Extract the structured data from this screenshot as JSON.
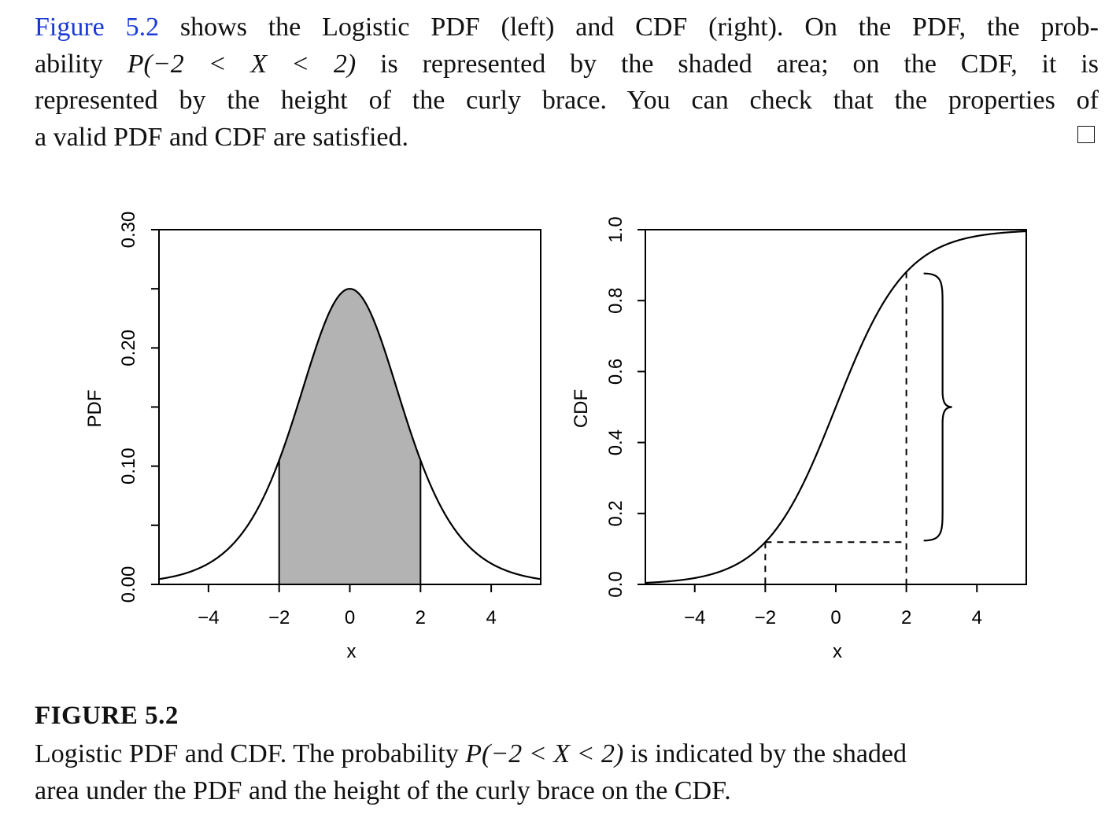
{
  "paragraph": {
    "ref": "Figure 5.2",
    "line1_rest": " shows the Logistic PDF (left) and CDF (right). On the PDF, the prob-",
    "line2_a": "ability ",
    "line2_math": "P(−2 < X < 2)",
    "line2_b": " is represented by the shaded area; on the CDF, it is",
    "line3": "represented by the height of the curly brace. You can check that the properties of",
    "line4": "a valid PDF and CDF are satisfied."
  },
  "caption": {
    "title": "FIGURE 5.2",
    "line1_a": "Logistic PDF and CDF. The probability ",
    "line1_math": "P(−2 < X < 2)",
    "line1_b": " is indicated by the shaded",
    "line2": "area under the PDF and the height of the curly brace on the CDF."
  },
  "chart_data": [
    {
      "type": "area",
      "ylabel": "PDF",
      "xlabel": "x",
      "xlim": [
        -5.4,
        5.4
      ],
      "ylim": [
        0,
        0.3
      ],
      "x_ticks": [
        "−4",
        "−2",
        "0",
        "2",
        "4"
      ],
      "x_tick_values": [
        -4,
        -2,
        0,
        2,
        4
      ],
      "y_ticks": [
        "0.00",
        "0.10",
        "0.20",
        "0.30"
      ],
      "y_tick_values": [
        0,
        0.1,
        0.2,
        0.3
      ],
      "y_minor_ticks": [
        0.05,
        0.15,
        0.25
      ],
      "curve": "logistic pdf e^-x/(1+e^-x)^2",
      "shaded_interval": [
        -2,
        2
      ],
      "peak": {
        "x": 0,
        "y": 0.25
      }
    },
    {
      "type": "line",
      "ylabel": "CDF",
      "xlabel": "x",
      "xlim": [
        -5.4,
        5.4
      ],
      "ylim": [
        0,
        1.0
      ],
      "x_ticks": [
        "−4",
        "−2",
        "0",
        "2",
        "4"
      ],
      "x_tick_values": [
        -4,
        -2,
        0,
        2,
        4
      ],
      "y_ticks": [
        "0.0",
        "0.2",
        "0.4",
        "0.6",
        "0.8",
        "1.0"
      ],
      "y_tick_values": [
        0,
        0.2,
        0.4,
        0.6,
        0.8,
        1.0
      ],
      "curve": "logistic cdf 1/(1+e^-x)",
      "dashed_markers": [
        {
          "x": -2,
          "y": 0.119
        },
        {
          "x": 2,
          "y": 0.881
        }
      ],
      "brace_interval": [
        0.119,
        0.881
      ]
    }
  ]
}
